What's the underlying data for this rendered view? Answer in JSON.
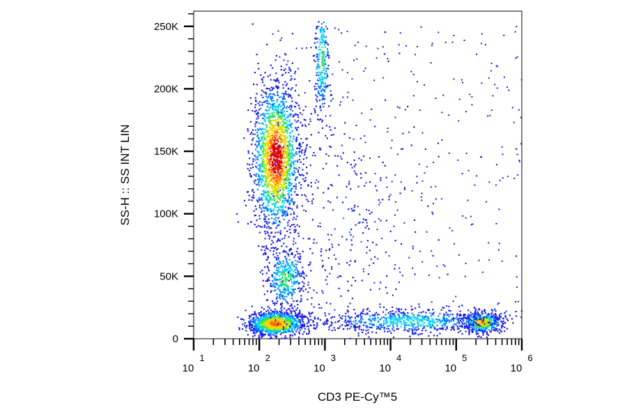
{
  "chart_data": {
    "type": "scatter",
    "style": "flow cytometry density dot plot (pseudocolor)",
    "xlabel": "CD3 PE-Cy™5",
    "ylabel": "SS-H :: SS INT LIN",
    "x_scale": "log",
    "xlim": [
      10,
      1000000
    ],
    "x_ticks": [
      {
        "base": "10",
        "exp": "1",
        "value": 10
      },
      {
        "base": "10",
        "exp": "2",
        "value": 100
      },
      {
        "base": "10",
        "exp": "3",
        "value": 1000
      },
      {
        "base": "10",
        "exp": "4",
        "value": 10000
      },
      {
        "base": "10",
        "exp": "5",
        "value": 100000
      },
      {
        "base": "10",
        "exp": "6",
        "value": 1000000
      }
    ],
    "y_scale": "linear",
    "ylim": [
      0,
      262144
    ],
    "y_ticks": [
      {
        "label": "0",
        "value": 0
      },
      {
        "label": "50K",
        "value": 50000
      },
      {
        "label": "100K",
        "value": 100000
      },
      {
        "label": "150K",
        "value": 150000
      },
      {
        "label": "200K",
        "value": 200000
      },
      {
        "label": "250K",
        "value": 250000
      }
    ],
    "grid": false,
    "legend": "none",
    "density_colors": [
      "#1a1ae6",
      "#0080ff",
      "#00d0ff",
      "#30e060",
      "#c8e600",
      "#ffd000",
      "#ff6a00",
      "#e00000"
    ],
    "populations": [
      {
        "x_center": 180,
        "x_spread_decades": 0.18,
        "y_center": 145000,
        "y_spread": 30000,
        "relative_size": 0.36,
        "peak_density": 1.0
      },
      {
        "x_center": 180,
        "x_spread_decades": 0.22,
        "y_center": 12000,
        "y_spread": 5000,
        "relative_size": 0.2,
        "peak_density": 0.85
      },
      {
        "x_center": 250,
        "x_spread_decades": 0.15,
        "y_center": 48000,
        "y_spread": 13000,
        "relative_size": 0.08,
        "peak_density": 0.45
      },
      {
        "x_center": 900,
        "x_spread_decades": 0.06,
        "y_center": 225000,
        "y_spread": 25000,
        "relative_size": 0.05,
        "peak_density": 0.45
      },
      {
        "x_center": 250000,
        "x_spread_decades": 0.15,
        "y_center": 13000,
        "y_spread": 4000,
        "relative_size": 0.09,
        "peak_density": 0.75
      },
      {
        "x_center": 20000,
        "x_spread_decades": 0.7,
        "y_center": 14000,
        "y_spread": 5000,
        "relative_size": 0.14,
        "peak_density": 0.35
      },
      {
        "x_center": 2000,
        "x_spread_decades": 0.6,
        "y_center": 90000,
        "y_spread": 55000,
        "relative_size": 0.05,
        "peak_density": 0.1
      }
    ]
  }
}
